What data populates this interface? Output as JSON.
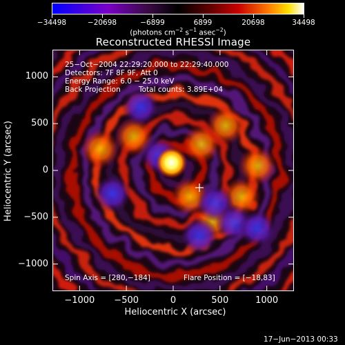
{
  "chart_data": {
    "type": "heatmap",
    "title": "Reconstructed RHESSI Image",
    "xlabel": "Heliocentric X (arcsec)",
    "ylabel": "Heliocentric Y (arcsec)",
    "xlim": [
      -1290,
      1290
    ],
    "ylim": [
      -1290,
      1290
    ],
    "x_ticks": [
      -1000,
      -500,
      0,
      500,
      1000
    ],
    "y_ticks": [
      1000,
      500,
      0,
      -500,
      -1000
    ],
    "x_tick_labels": [
      "−1000",
      "−500",
      "0",
      "500",
      "1000"
    ],
    "y_tick_labels": [
      "1000",
      "500",
      "0",
      "−500",
      "−1000"
    ],
    "colorbar": {
      "ticks": [
        -34498,
        -20698,
        -6899,
        6899,
        20698,
        34498
      ],
      "tick_labels": [
        "−34498",
        "−20698",
        "−6899",
        "6899",
        "20698",
        "34498"
      ],
      "units_main": "(photons cm",
      "units_sup1": "−2",
      "units_mid1": " s",
      "units_sup2": "−1",
      "units_mid2": " asec",
      "units_sup3": "−2",
      "units_end": ")"
    },
    "solar_limb": {
      "center": [
        0,
        0
      ],
      "radius_arcsec": 985
    },
    "flare_position": [
      -18,
      83
    ],
    "peak_value": 34498,
    "marker_cross": [
      280,
      -184
    ],
    "annotations": {
      "line1": "25−Oct−2004 22:29:20.000 to 22:29:40.000",
      "line2": "Detectors: 7F 8F 9F, Att 0",
      "line3": "Energy Range: 6.0 − 25.0 keV",
      "line4a": "Back Projection",
      "line4b": "Total counts: 3.89E+04",
      "spin_axis": "Spin Axis = [280,−184]",
      "flare_pos_label": "Flare Position = [−18,83]"
    },
    "grid": false
  },
  "timestamp": "17−Jun−2013 00:33"
}
